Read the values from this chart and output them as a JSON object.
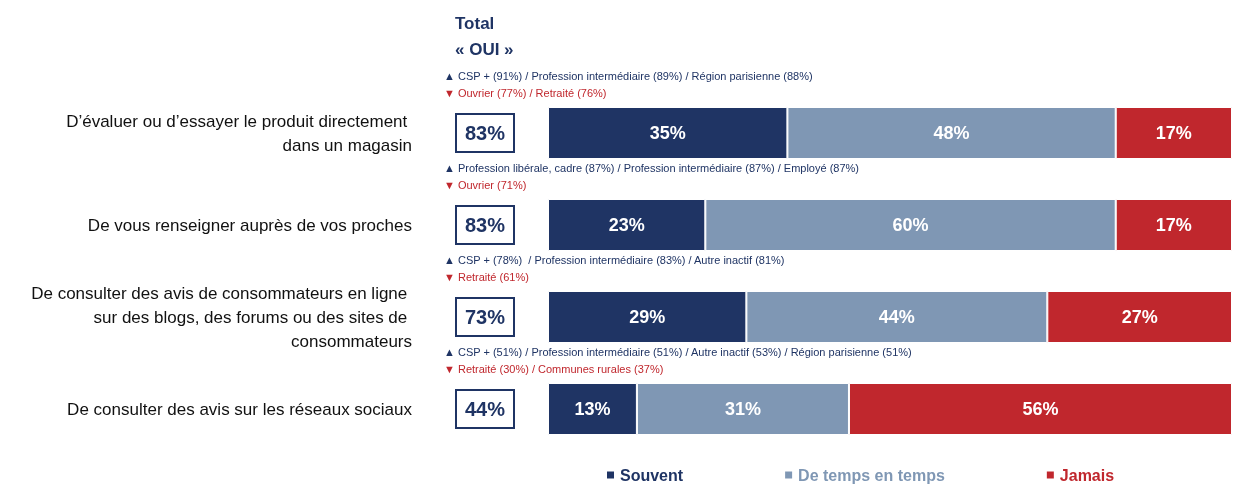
{
  "chart_data": {
    "type": "bar",
    "orientation": "horizontal",
    "stacked": true,
    "legend": "bottom",
    "categories": [
      "D’évaluer ou d’essayer le produit directement dans un magasin",
      "De vous renseigner auprès de vos proches",
      "De consulter des avis de consommateurs en ligne sur des blogs, des forums ou des sites de consommateurs",
      "De consulter des avis sur les réseaux sociaux"
    ],
    "series": [
      {
        "name": "Souvent",
        "color": "#1f3464",
        "values": [
          35,
          23,
          29,
          13
        ],
        "value_labels": [
          "35%",
          "23%",
          "29%",
          "13%"
        ]
      },
      {
        "name": "De temps en temps",
        "color": "#7f97b4",
        "values": [
          48,
          60,
          44,
          31
        ],
        "value_labels": [
          "48%",
          "60%",
          "44%",
          "31%"
        ]
      },
      {
        "name": "Jamais",
        "color": "#c0272d",
        "values": [
          17,
          17,
          27,
          56
        ],
        "value_labels": [
          "17%",
          "17%",
          "27%",
          "56%"
        ]
      }
    ],
    "annotations": [
      "Total\n« OUI »",
      "83%",
      "▲ CSP + (91%) / Profession intermédiaire (89%) / Région parisienne (88%)",
      "▼ Ouvrier (77%) / Retraité (76%)",
      "83%",
      "▲ Profession libérale, cadre (87%) / Profession intermédiaire (87%) / Employé (87%)",
      "▼ Ouvrier (71%)",
      "73%",
      "▲ CSP + (78%)  / Profession intermédiaire (83%) / Autre inactif (81%)",
      "▼ Retraité (61%)",
      "44%",
      "▲ CSP + (51%) / Profession intermédiaire (51%) / Autre inactif (53%) / Région parisienne (51%)",
      "▼ Retraité (30%) / Communes rurales (37%)"
    ]
  }
}
